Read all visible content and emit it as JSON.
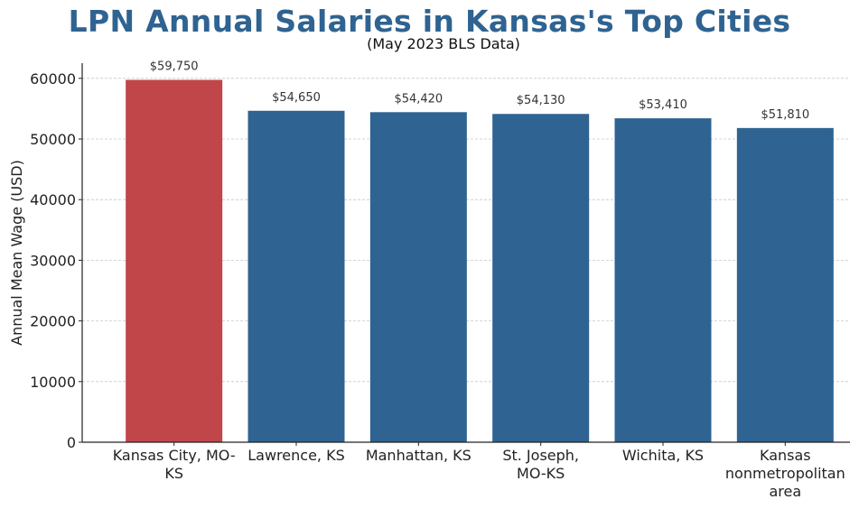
{
  "chart_data": {
    "type": "bar",
    "title": "LPN Annual Salaries in Kansas's Top Cities",
    "subtitle": "(May 2023 BLS Data)",
    "xlabel": "",
    "ylabel": "Annual Mean Wage (USD)",
    "ylim": [
      0,
      62500
    ],
    "yticks": [
      0,
      10000,
      20000,
      30000,
      40000,
      50000,
      60000
    ],
    "grid": "horizontal dashed",
    "categories": [
      "Kansas City, MO-KS",
      "Lawrence, KS",
      "Manhattan, KS",
      "St. Joseph, MO-KS",
      "Wichita, KS",
      "Kansas nonmetropolitan area"
    ],
    "category_lines": [
      [
        "Kansas City, MO-",
        "KS"
      ],
      [
        "Lawrence, KS"
      ],
      [
        "Manhattan, KS"
      ],
      [
        "St. Joseph,",
        "MO-KS"
      ],
      [
        "Wichita, KS"
      ],
      [
        "Kansas",
        "nonmetropolitan",
        "area"
      ]
    ],
    "values": [
      59750,
      54650,
      54420,
      54130,
      53410,
      51810
    ],
    "data_labels": [
      "$59,750",
      "$54,650",
      "$54,420",
      "$54,130",
      "$53,410",
      "$51,810"
    ],
    "colors": [
      "#c0464a",
      "#2f6391",
      "#2f6391",
      "#2f6391",
      "#2f6391",
      "#2f6391"
    ]
  }
}
